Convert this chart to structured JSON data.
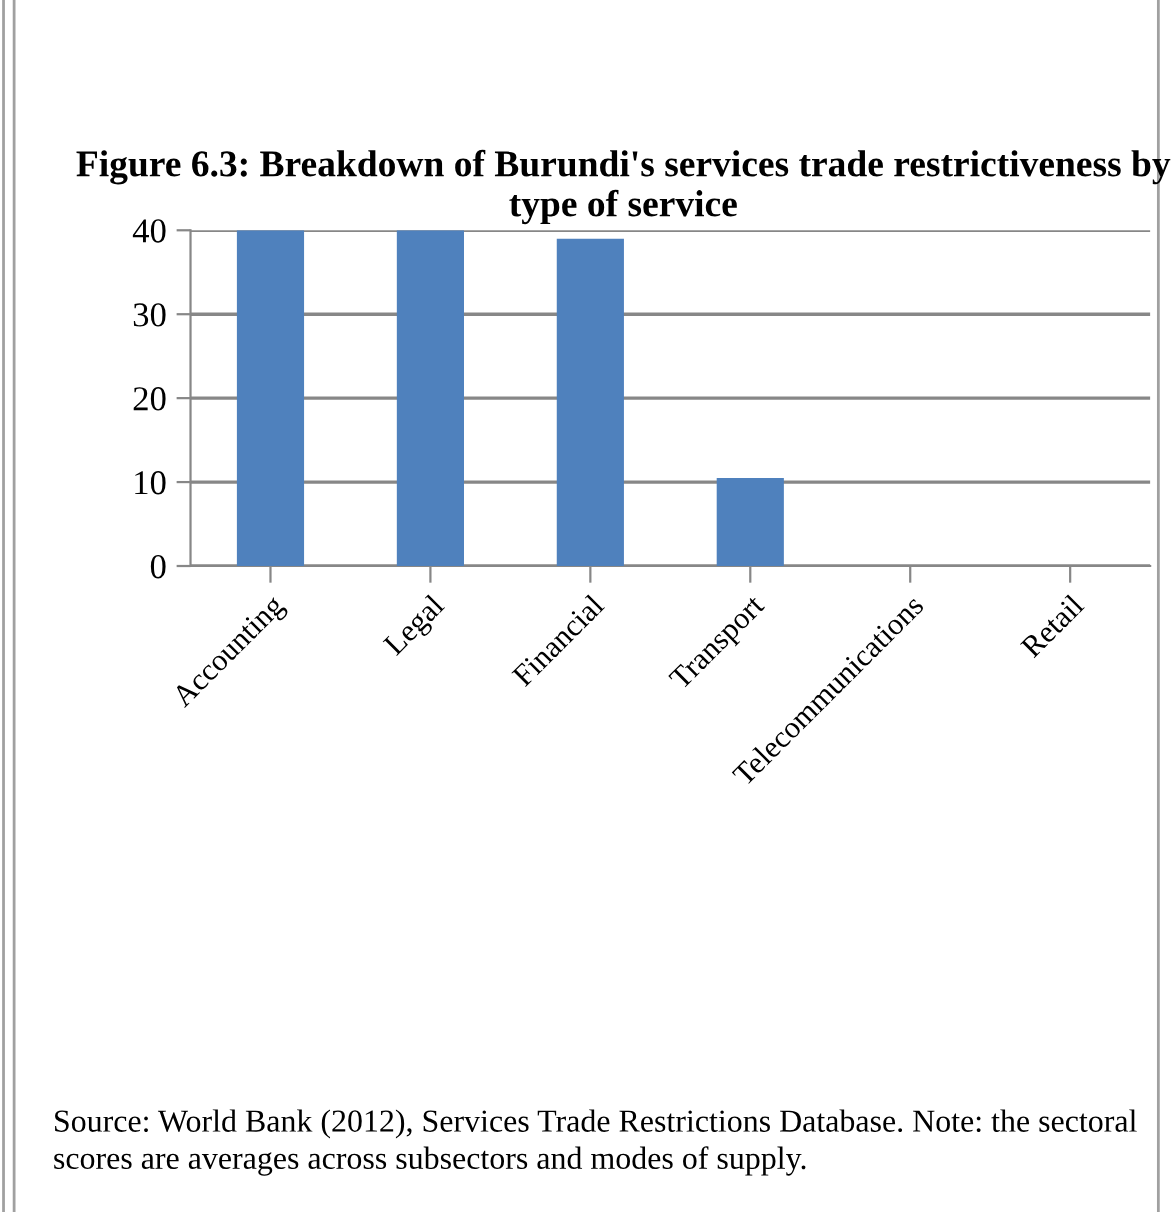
{
  "chart_data": {
    "type": "bar",
    "title": "Figure 6.3: Breakdown of Burundi's services trade restrictiveness by type of service",
    "categories": [
      "Accounting",
      "Legal",
      "Financial",
      "Transport",
      "Telecommunications",
      "Retail"
    ],
    "values": [
      40,
      40,
      39,
      10.5,
      0,
      0
    ],
    "color": "#4f81bd",
    "ylim": [
      0,
      40
    ],
    "yticks": [
      0,
      10,
      20,
      30,
      40
    ],
    "grid": "y",
    "annotations": [
      "Source: World Bank (2012), Services Trade Restrictions Database. Note: the sectoral scores are averages across subsectors and modes of supply."
    ]
  }
}
